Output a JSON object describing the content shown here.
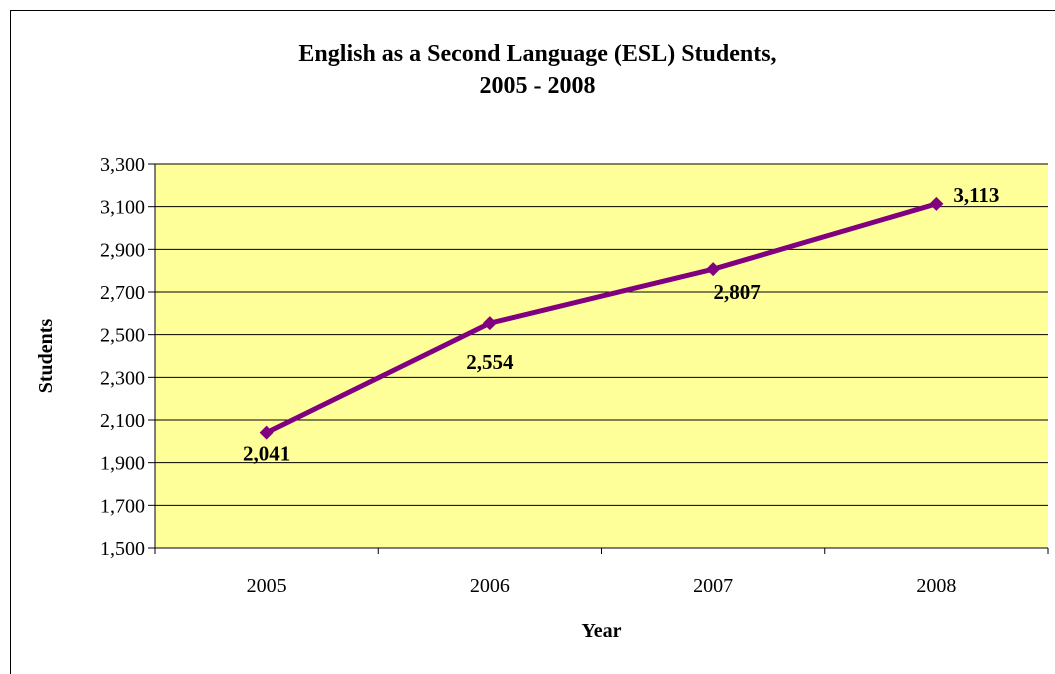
{
  "chart_data": {
    "type": "line",
    "title_line1": "English as a Second Language (ESL) Students,",
    "title_line2": "2005 - 2008",
    "xlabel": "Year",
    "ylabel": "Students",
    "categories": [
      "2005",
      "2006",
      "2007",
      "2008"
    ],
    "series": [
      {
        "values": [
          2041,
          2554,
          2807,
          3113
        ]
      }
    ],
    "data_labels": [
      "2,041",
      "2,554",
      "2,807",
      "3,113"
    ],
    "ylim": [
      1500,
      3300
    ],
    "yticks": [
      1500,
      1700,
      1900,
      2100,
      2300,
      2500,
      2700,
      2900,
      3100,
      3300
    ],
    "ytick_labels": [
      "1,500",
      "1,700",
      "1,900",
      "2,100",
      "2,300",
      "2,500",
      "2,700",
      "2,900",
      "3,100",
      "3,300"
    ],
    "grid": true,
    "legend": "none",
    "colors": {
      "plot_background": "#FFFF99",
      "line": "#800080",
      "grid": "#000000"
    }
  }
}
